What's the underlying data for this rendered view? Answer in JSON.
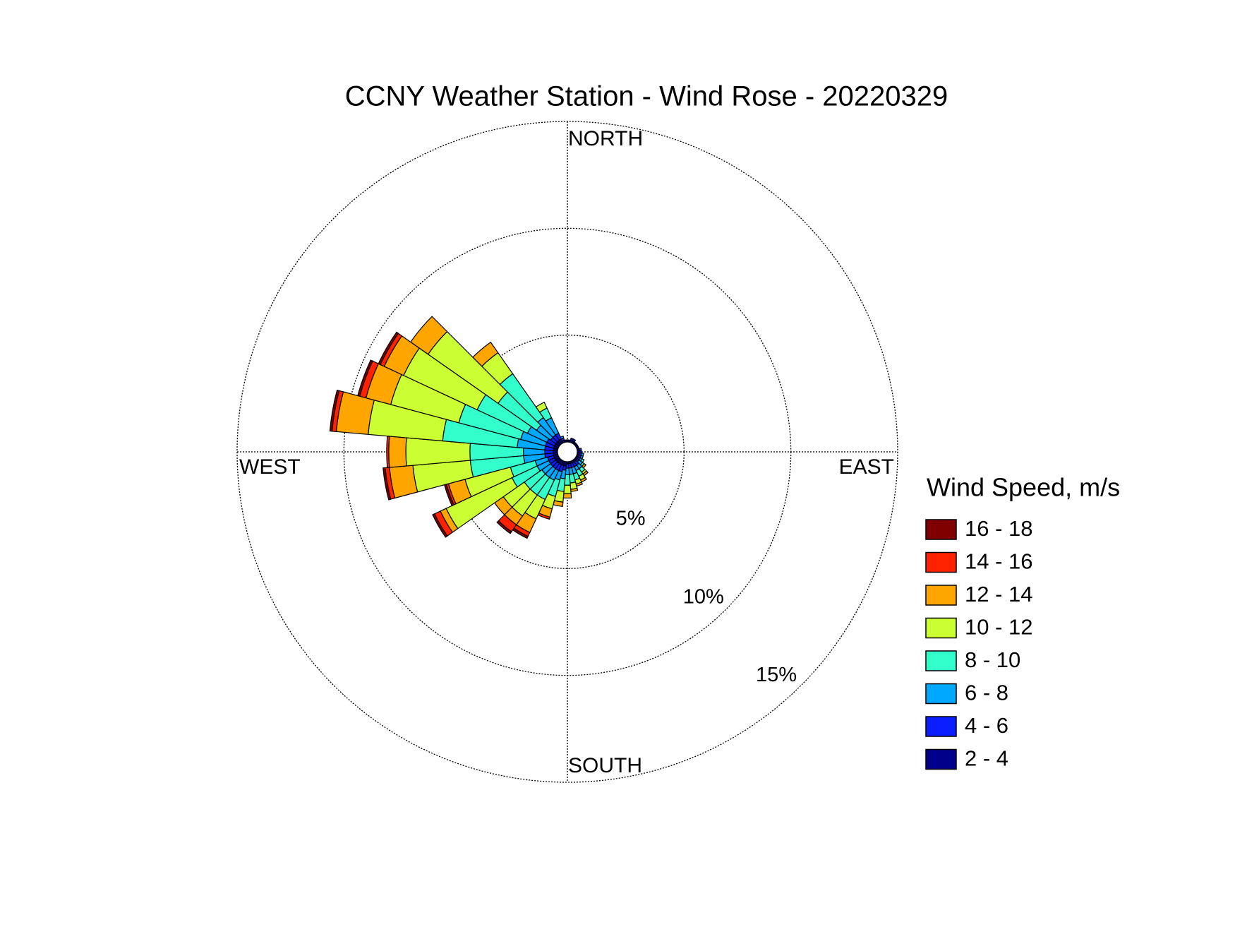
{
  "chart_data": {
    "type": "windrose",
    "title": "CCNY Weather Station - Wind Rose - 20220329",
    "direction_labels": {
      "north": "NORTH",
      "east": "EAST",
      "south": "SOUTH",
      "west": "WEST"
    },
    "legend_title": "Wind Speed, m/s",
    "legend": "right",
    "x": [
      0,
      10,
      20,
      30,
      40,
      50,
      60,
      70,
      80,
      90,
      100,
      110,
      120,
      130,
      140,
      150,
      160,
      170,
      180,
      190,
      200,
      210,
      220,
      230,
      240,
      250,
      260,
      270,
      280,
      290,
      300,
      310,
      320,
      330,
      340,
      350
    ],
    "rlim": [
      0,
      15
    ],
    "rticks": [
      {
        "value": 5,
        "label": "5%"
      },
      {
        "value": 10,
        "label": "10%"
      },
      {
        "value": 15,
        "label": "15%"
      }
    ],
    "series": [
      {
        "name": "2 - 4",
        "color": "#00008b",
        "values": [
          0.1,
          0.1,
          0.1,
          0.1,
          0.1,
          0.1,
          0.1,
          0.1,
          0.1,
          0.1,
          0.1,
          0.1,
          0.1,
          0.1,
          0.1,
          0.1,
          0.1,
          0.1,
          0.1,
          0.2,
          0.2,
          0.2,
          0.2,
          0.2,
          0.2,
          0.2,
          0.2,
          0.2,
          0.2,
          0.2,
          0.2,
          0.2,
          0.2,
          0.2,
          0.1,
          0.1
        ]
      },
      {
        "name": "4 - 6",
        "color": "#0a1eff",
        "values": [
          0,
          0,
          0.1,
          0.1,
          0,
          0,
          0,
          0,
          0.1,
          0.1,
          0.1,
          0.1,
          0.1,
          0.1,
          0.2,
          0.2,
          0.2,
          0.2,
          0.2,
          0.2,
          0.3,
          0.3,
          0.3,
          0.3,
          0.3,
          0.3,
          0.4,
          0.4,
          0.4,
          0.4,
          0.4,
          0.3,
          0.3,
          0.3,
          0.1,
          0
        ]
      },
      {
        "name": "6 - 8",
        "color": "#00a8ff",
        "values": [
          0,
          0,
          0,
          0,
          0,
          0,
          0,
          0,
          0,
          0,
          0.1,
          0.1,
          0.1,
          0.2,
          0.2,
          0.2,
          0.3,
          0.3,
          0.3,
          0.4,
          0.4,
          0.5,
          0.5,
          0.5,
          0.6,
          0.6,
          1.0,
          1.0,
          1.3,
          1.2,
          1.0,
          0.8,
          1.0,
          0.8,
          0.1,
          0
        ]
      },
      {
        "name": "8 - 10",
        "color": "#33ffcc",
        "values": [
          0,
          0,
          0,
          0,
          0,
          0,
          0,
          0,
          0,
          0,
          0,
          0,
          0.1,
          0.1,
          0.2,
          0.3,
          0.3,
          0.4,
          0.5,
          0.6,
          0.8,
          1.0,
          1.0,
          1.0,
          1.3,
          1.2,
          2.5,
          2.5,
          3.5,
          3.0,
          2.6,
          2.2,
          2.5,
          0.5,
          0,
          0
        ]
      },
      {
        "name": "10 - 12",
        "color": "#ccff33",
        "values": [
          0,
          0,
          0,
          0,
          0,
          0,
          0,
          0,
          0,
          0,
          0,
          0,
          0,
          0,
          0.1,
          0.2,
          0.2,
          0.3,
          0.4,
          0.5,
          0.6,
          1.0,
          1.2,
          1.2,
          3.4,
          2.2,
          2.7,
          3.0,
          3.5,
          3.3,
          3.8,
          4.0,
          1.2,
          0.3,
          0,
          0
        ]
      },
      {
        "name": "12 - 14",
        "color": "#ffa500",
        "values": [
          0,
          0,
          0,
          0,
          0,
          0,
          0,
          0,
          0,
          0,
          0,
          0,
          0,
          0.1,
          0.1,
          0.1,
          0.1,
          0.1,
          0.2,
          0.2,
          0.4,
          0.7,
          0.5,
          0.5,
          0.3,
          0.8,
          1.1,
          0.8,
          1.5,
          1.2,
          1.0,
          1.0,
          0.6,
          0,
          0,
          0
        ]
      },
      {
        "name": "14 - 16",
        "color": "#ff2200",
        "values": [
          0,
          0,
          0,
          0,
          0,
          0,
          0,
          0,
          0,
          0,
          0,
          0,
          0,
          0,
          0,
          0,
          0,
          0,
          0,
          0,
          0.1,
          0.2,
          0.4,
          0,
          0.3,
          0.1,
          0.2,
          0.1,
          0.2,
          0.3,
          0.2,
          0,
          0,
          0,
          0,
          0
        ]
      },
      {
        "name": "16 - 18",
        "color": "#800000",
        "values": [
          0,
          0,
          0,
          0,
          0,
          0,
          0,
          0,
          0,
          0,
          0,
          0,
          0,
          0,
          0,
          0,
          0,
          0,
          0,
          0,
          0,
          0.1,
          0.1,
          0,
          0.1,
          0.1,
          0.1,
          0,
          0.1,
          0.1,
          0.1,
          0,
          0,
          0,
          0,
          0
        ]
      }
    ]
  }
}
